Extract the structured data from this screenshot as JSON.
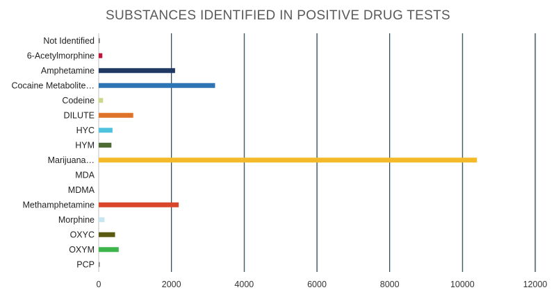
{
  "chart_data": {
    "type": "bar",
    "orientation": "horizontal",
    "title": "SUBSTANCES IDENTIFIED IN POSITIVE DRUG TESTS",
    "categories": [
      "Not Identified",
      "6-Acetylmorphine",
      "Amphetamine",
      "Cocaine Metabolite…",
      "Codeine",
      "DILUTE",
      "HYC",
      "HYM",
      "Marijuana…",
      "MDA",
      "MDMA",
      "Methamphetamine",
      "Morphine",
      "OXYC",
      "OXYM",
      "PCP"
    ],
    "values": [
      30,
      100,
      2100,
      3200,
      120,
      950,
      380,
      350,
      10400,
      10,
      10,
      2200,
      160,
      450,
      550,
      30
    ],
    "colors": [
      "#6b6b6b",
      "#c0143c",
      "#1f3864",
      "#2e75b6",
      "#c9d98a",
      "#e0732a",
      "#4fc3dd",
      "#4e6b34",
      "#f4b928",
      "#d9d9d9",
      "#d9d9d9",
      "#d9462a",
      "#c8e6f0",
      "#5a5a12",
      "#3cb54a",
      "#7a7a7a"
    ],
    "xlim": [
      0,
      12000
    ],
    "xticks": [
      0,
      2000,
      4000,
      6000,
      8000,
      10000,
      12000
    ],
    "xtick_labels": [
      "0",
      "2000",
      "4000",
      "6000",
      "8000",
      "10000",
      "12000"
    ],
    "grid": true,
    "legend": "none"
  }
}
